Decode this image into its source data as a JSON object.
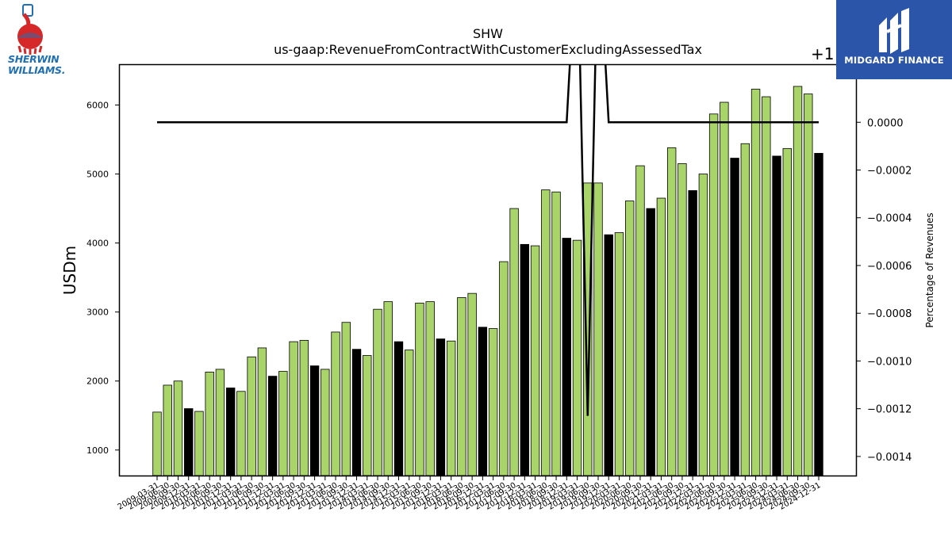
{
  "brand_left": {
    "line1": "SHERWIN",
    "line2": "WILLIAMS."
  },
  "brand_right": {
    "name": "MIDGARD FINANCE"
  },
  "chart_data": {
    "type": "bar",
    "title": "SHW",
    "subtitle": "us-gaap:RevenueFromContractWithCustomerExcludingAssessedTax",
    "ylabel": "USDm",
    "y2label": "Percentage of Revenues",
    "y2_offset_label": "+1",
    "ylim": [
      630,
      6580
    ],
    "yticks": [
      1000,
      2000,
      3000,
      4000,
      5000,
      6000
    ],
    "y2lim": [
      -0.00148,
      0.00024
    ],
    "y2ticks": [
      "0.0000",
      "−0.0002",
      "−0.0004",
      "−0.0006",
      "−0.0008",
      "−0.0010",
      "−0.0012",
      "−0.0014"
    ],
    "y2tick_values": [
      0,
      -0.0002,
      -0.0004,
      -0.0006,
      -0.0008,
      -0.001,
      -0.0012,
      -0.0014
    ],
    "colors": {
      "quarter": "#a8d46a",
      "annual": "#000000",
      "line": "#000000"
    },
    "categories": [
      "2009-03-31",
      "2009-06-30",
      "2009-09-30",
      "2009-12-31",
      "2010-03-31",
      "2010-06-30",
      "2010-09-30",
      "2010-12-31",
      "2011-03-31",
      "2011-06-30",
      "2011-09-30",
      "2011-12-31",
      "2012-03-31",
      "2012-06-30",
      "2012-09-30",
      "2012-12-31",
      "2013-03-31",
      "2013-06-30",
      "2013-09-30",
      "2013-12-31",
      "2014-03-31",
      "2014-06-30",
      "2014-09-30",
      "2014-12-31",
      "2015-03-31",
      "2015-06-30",
      "2015-09-30",
      "2015-12-31",
      "2016-03-31",
      "2016-06-30",
      "2016-09-30",
      "2016-12-31",
      "2017-03-31",
      "2017-06-30",
      "2017-09-30",
      "2017-12-31",
      "2018-03-31",
      "2018-06-30",
      "2018-09-30",
      "2018-12-31",
      "2019-03-31",
      "2019-06-30",
      "2019-09-30",
      "2019-12-31",
      "2020-03-31",
      "2020-06-30",
      "2020-09-30",
      "2020-12-31",
      "2021-03-31",
      "2021-06-30",
      "2021-09-30",
      "2021-12-31",
      "2022-03-31",
      "2022-06-30",
      "2022-09-30",
      "2022-12-31",
      "2023-03-31",
      "2023-06-30",
      "2023-09-30",
      "2023-12-31",
      "2024-03-31",
      "2024-06-30",
      "2024-09-30",
      "2024-12-31"
    ],
    "tick_labels_visible": [
      "2009-03-31",
      "2009-06-30",
      "2009-09-30",
      "2009-12-31",
      "2010-03-31",
      "2010-06-30",
      "2010-09-30",
      "2010-12-31",
      "2011-03-31",
      "2011-06-30",
      "2011-09-30",
      "2011-12-31",
      "2012-03-31",
      "2012-06-30",
      "2012-09-30",
      "2012-12-31",
      "2013-03-31",
      "2013-06-30",
      "2013-09-30",
      "2013-12-31",
      "2014-03-31",
      "2014-06-30",
      "2014-09-30",
      "2014-12-31",
      "2015-03-31",
      "2015-06-30",
      "2015-09-30",
      "2015-12-31",
      "2016-03-31",
      "2016-06-30",
      "2016-09-30",
      "2016-12-31",
      "2017-03-31",
      "2017-06-30",
      "2017-09-30",
      "2017-12-31",
      "2018-03-31",
      "2018-06-30",
      "2018-09-30",
      "2018-12-31",
      "2019-03-31",
      "2019-06-30",
      "2019-09-30",
      "2019-12-31",
      "2020-03-31",
      "2020-06-30",
      "2020-09-30",
      "2020-12-31",
      "2021-03-31",
      "2021-06-30",
      "2021-09-30",
      "2021-12-31",
      "2022-03-31",
      "2022-06-30",
      "2022-09-30",
      "2022-12-31",
      "2023-03-31",
      "2023-06-30",
      "2023-09-30",
      "2023-12-31",
      "2024-03-31",
      "2024-06-30",
      "2024-09-30",
      "2024-12-31"
    ],
    "values": [
      1550,
      1940,
      2000,
      1600,
      1560,
      2130,
      2170,
      1900,
      1850,
      2350,
      2480,
      2070,
      2140,
      2570,
      2590,
      2220,
      2170,
      2710,
      2850,
      2460,
      2370,
      3040,
      3150,
      2570,
      2450,
      3130,
      3150,
      2610,
      2580,
      3210,
      3270,
      2780,
      2760,
      3730,
      4500,
      3980,
      3960,
      4770,
      4740,
      4070,
      4040,
      4870,
      4870,
      4120,
      4150,
      4610,
      5120,
      4500,
      4650,
      5380,
      5150,
      4760,
      5000,
      5870,
      6040,
      5230,
      5440,
      6230,
      6120,
      5260,
      5370,
      6270,
      6160,
      5300
    ],
    "annual_mask": [
      0,
      0,
      0,
      1,
      0,
      0,
      0,
      1,
      0,
      0,
      0,
      1,
      0,
      0,
      0,
      1,
      0,
      0,
      0,
      1,
      0,
      0,
      0,
      1,
      0,
      0,
      0,
      1,
      0,
      0,
      0,
      1,
      0,
      0,
      0,
      1,
      0,
      0,
      0,
      1,
      0,
      0,
      0,
      1,
      0,
      0,
      0,
      1,
      0,
      0,
      0,
      1,
      0,
      0,
      0,
      1,
      0,
      0,
      0,
      1,
      0,
      0,
      0,
      1
    ],
    "line_series": {
      "name": "Percentage of Revenues",
      "x_index": [
        0,
        39,
        40,
        41,
        42,
        43,
        44,
        63
      ],
      "values": [
        0,
        0,
        0.0008,
        -0.00123,
        0.0008,
        0,
        0,
        0
      ]
    }
  }
}
